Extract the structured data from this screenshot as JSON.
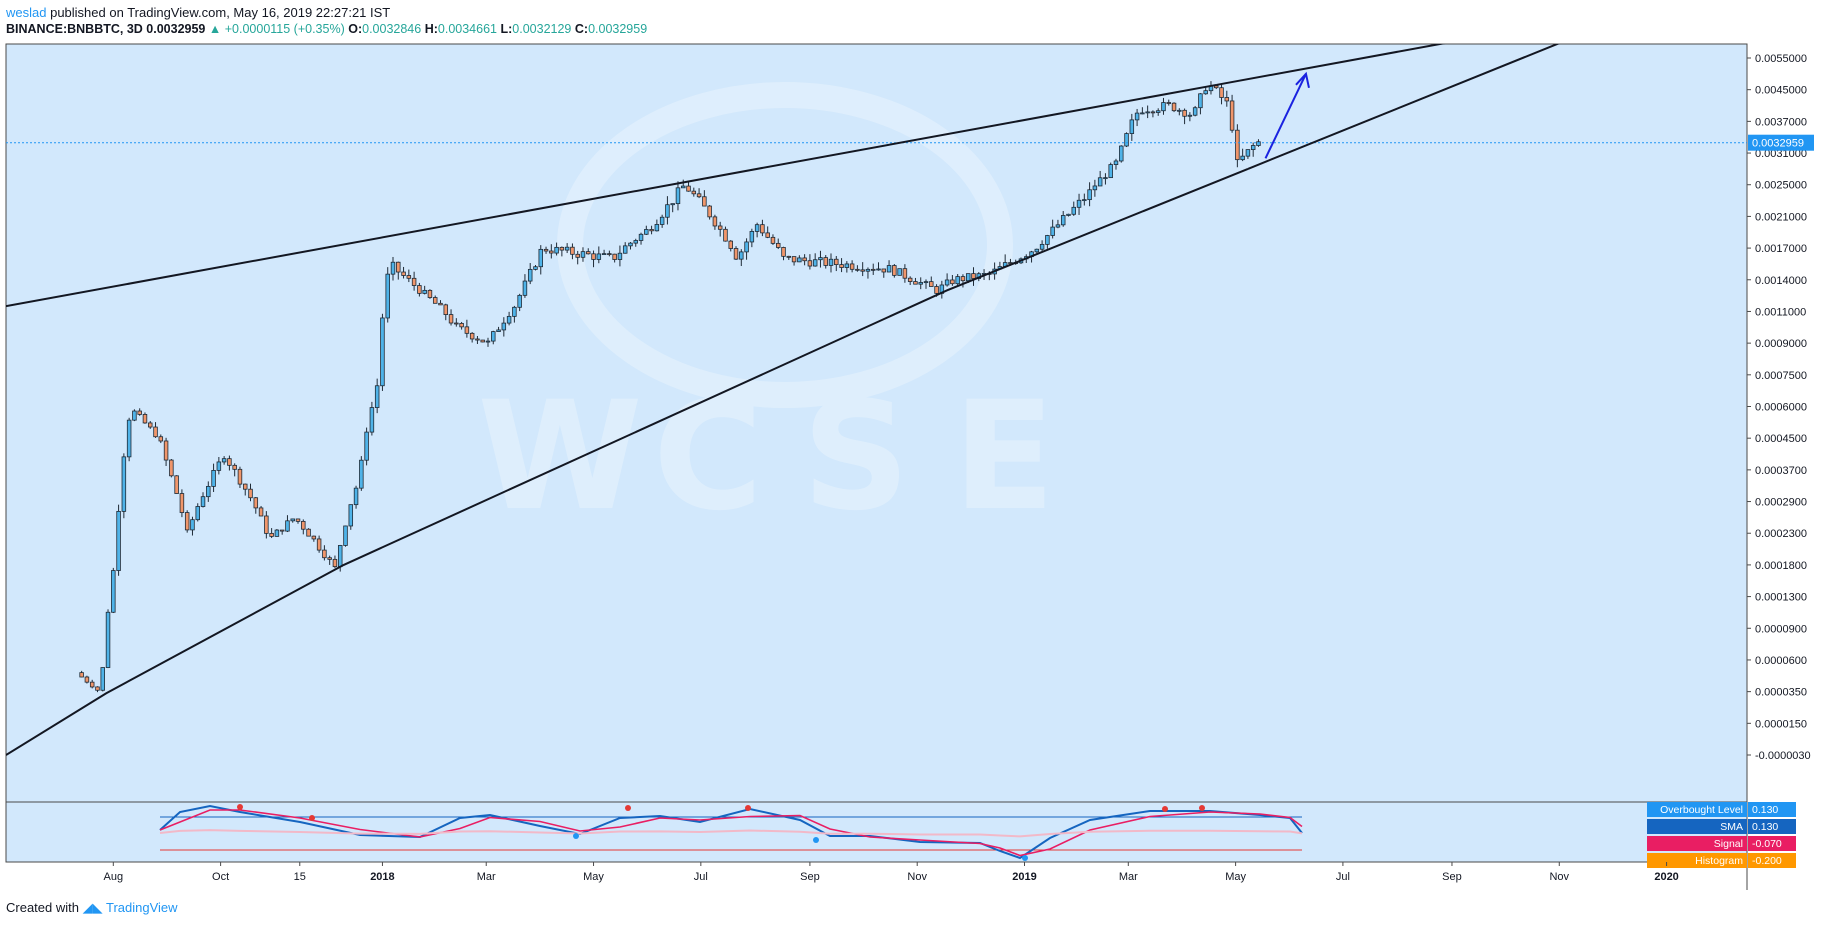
{
  "header": {
    "author": "weslad",
    "publish_text": "published on TradingView.com, May 16, 2019 22:27:21 IST",
    "symbol": "BINANCE:BNBBTC, 3D",
    "last": "0.0032959",
    "change": "+0.0000115 (+0.35%)",
    "o_label": "O:",
    "o": "0.0032846",
    "h_label": "H:",
    "h": "0.0034661",
    "l_label": "L:",
    "l": "0.0032129",
    "c_label": "C:",
    "c": "0.0032959"
  },
  "footer": {
    "created": "Created with",
    "brand": "TradingView"
  },
  "colors": {
    "background": "#d2e8fc",
    "bull": "#4fb3e8",
    "bear": "#f0966b",
    "trendline": "#131722",
    "arrow": "#1a22e0",
    "price_tag": "#2196f3",
    "sma": "#1565c0",
    "signal": "#e91e63",
    "histogram": "#ff9800"
  },
  "chart_data": {
    "type": "candlestick",
    "title": "BINANCE:BNBBTC, 3D",
    "x_ticks": [
      "Aug",
      "Oct",
      "15",
      "2018",
      "Mar",
      "May",
      "Jul",
      "Sep",
      "Nov",
      "2019",
      "Mar",
      "May",
      "Jul",
      "Sep",
      "Nov",
      "2020"
    ],
    "y_ticks": [
      "0.0055000",
      "0.0045000",
      "0.0037000",
      "0.0031000",
      "0.0025000",
      "0.0021000",
      "0.0017000",
      "0.0014000",
      "0.0011000",
      "0.0009000",
      "0.0007500",
      "0.0006000",
      "0.0004500",
      "0.0003700",
      "0.0002900",
      "0.0002300",
      "0.0001800",
      "0.0001300",
      "0.0000900",
      "0.0000600",
      "0.0000350",
      "0.0000150",
      "-0.0000030"
    ],
    "current_price": "0.0032959",
    "price_path": [
      [
        "2017-07-14",
        5e-05
      ],
      [
        "2017-07-28",
        3.4e-05
      ],
      [
        "2017-08-05",
        0.00019
      ],
      [
        "2017-08-14",
        0.00059
      ],
      [
        "2017-08-29",
        0.00046
      ],
      [
        "2017-09-15",
        0.00023
      ],
      [
        "2017-10-06",
        0.00041
      ],
      [
        "2017-11-01",
        0.00022
      ],
      [
        "2017-11-15",
        0.00026
      ],
      [
        "2017-12-08",
        0.000175
      ],
      [
        "2017-12-22",
        0.00035
      ],
      [
        "2018-01-01",
        0.0007
      ],
      [
        "2018-01-08",
        0.00155
      ],
      [
        "2018-01-22",
        0.00135
      ],
      [
        "2018-02-15",
        0.001
      ],
      [
        "2018-03-05",
        0.0009
      ],
      [
        "2018-03-20",
        0.00115
      ],
      [
        "2018-04-05",
        0.0017
      ],
      [
        "2018-04-25",
        0.00165
      ],
      [
        "2018-05-15",
        0.0016
      ],
      [
        "2018-06-05",
        0.00195
      ],
      [
        "2018-06-25",
        0.0025
      ],
      [
        "2018-07-10",
        0.0021
      ],
      [
        "2018-07-25",
        0.0016
      ],
      [
        "2018-08-05",
        0.002
      ],
      [
        "2018-08-20",
        0.0016
      ],
      [
        "2018-09-20",
        0.00155
      ],
      [
        "2018-10-20",
        0.0015
      ],
      [
        "2018-11-15",
        0.0013
      ],
      [
        "2018-11-25",
        0.0014
      ],
      [
        "2018-12-15",
        0.00145
      ],
      [
        "2019-01-10",
        0.0017
      ],
      [
        "2019-02-10",
        0.0024
      ],
      [
        "2019-02-25",
        0.0029
      ],
      [
        "2019-03-10",
        0.004
      ],
      [
        "2019-03-28",
        0.0041
      ],
      [
        "2019-04-10",
        0.00385
      ],
      [
        "2019-04-18",
        0.0047
      ],
      [
        "2019-04-30",
        0.0041
      ],
      [
        "2019-05-05",
        0.0029
      ],
      [
        "2019-05-16",
        0.0033
      ]
    ],
    "trendlines": [
      {
        "name": "upper",
        "points": [
          [
            "2017-06-01",
            0.00115
          ],
          [
            "2018-06-22",
            0.00255
          ],
          [
            "2019-04-20",
            0.00465
          ]
        ]
      },
      {
        "name": "lower",
        "points": [
          [
            "2017-06-01",
            -3e-06
          ],
          [
            "2017-07-28",
            3.4e-05
          ],
          [
            "2017-12-10",
            0.00018
          ],
          [
            "2018-11-18",
            0.0013
          ],
          [
            "2019-05-08",
            0.0028
          ]
        ]
      }
    ],
    "arrow_label": "",
    "indicator": {
      "name": "MACD-style oscillator",
      "legend": [
        {
          "label": "Overbought Level",
          "value": "0.130"
        },
        {
          "label": "SMA",
          "value": "0.130"
        },
        {
          "label": "Signal",
          "value": "-0.070"
        },
        {
          "label": "Histogram",
          "value": "-0.200"
        }
      ]
    }
  }
}
